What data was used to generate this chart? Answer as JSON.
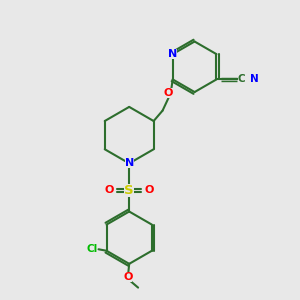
{
  "background_color": "#e8e8e8",
  "bond_color": "#2d6e2d",
  "bond_width": 1.5,
  "n_color": "#0000ff",
  "o_color": "#ff0000",
  "s_color": "#cccc00",
  "cl_color": "#00bb00",
  "text_color": "#000000",
  "figsize": [
    3.0,
    3.0
  ],
  "dpi": 100,
  "xlim": [
    0,
    10
  ],
  "ylim": [
    0,
    10
  ]
}
